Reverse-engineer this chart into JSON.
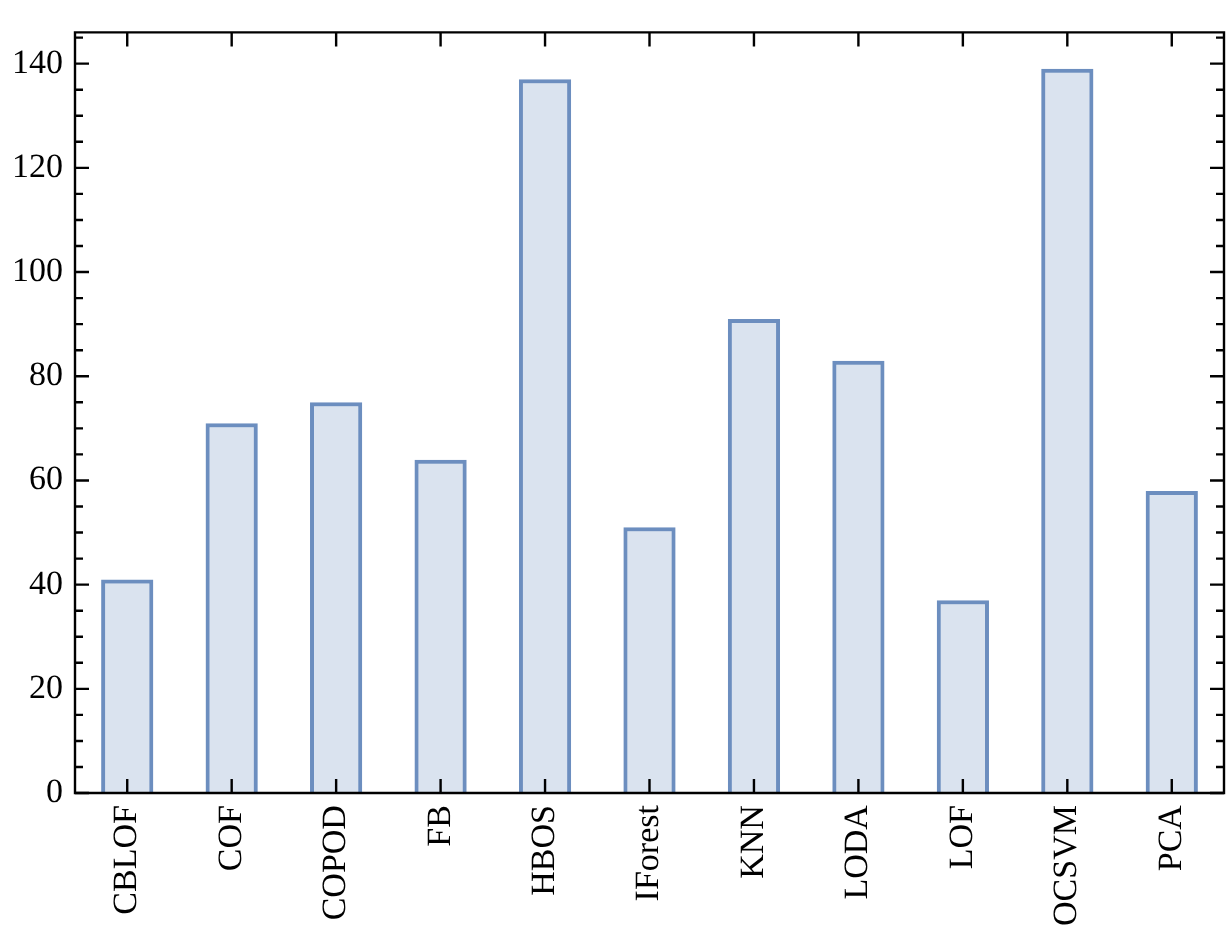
{
  "chart_data": {
    "type": "bar",
    "categories": [
      "CBLOF",
      "COF",
      "COPOD",
      "FB",
      "HBOS",
      "IForest",
      "KNN",
      "LODA",
      "LOF",
      "OCSVM",
      "PCA"
    ],
    "values": [
      41,
      71,
      75,
      64,
      137,
      51,
      91,
      83,
      37,
      139,
      58
    ],
    "color": "#6c8ebf",
    "ylim": [
      0,
      146
    ],
    "yticks": [
      0,
      20,
      40,
      60,
      80,
      100,
      120,
      140
    ],
    "grid": false
  }
}
